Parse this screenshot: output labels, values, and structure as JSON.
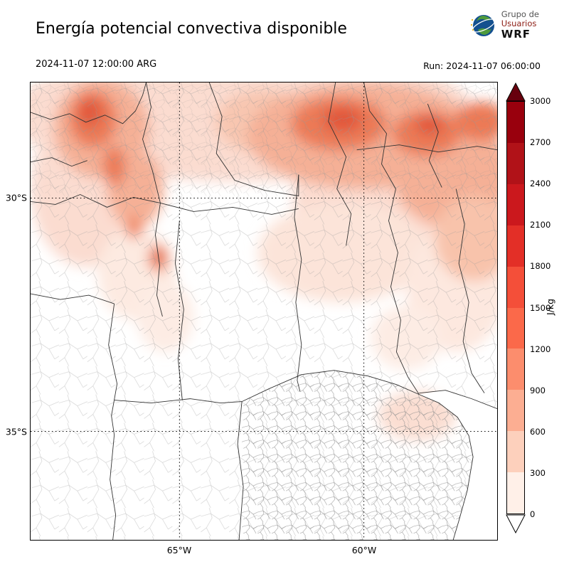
{
  "header": {
    "title": "Energía potencial convectiva disponible",
    "valid_time": "2024-11-07 12:00:00 ARG",
    "run_label": "Run: 2024-11-07 06:00:00",
    "logo": {
      "line1": "Grupo de",
      "line2": "Usuarios",
      "line3": "WRF"
    }
  },
  "map": {
    "lat_ticks": [
      "30°S",
      "35°S"
    ],
    "lon_ticks": [
      "65°W",
      "60°W"
    ]
  },
  "colorbar": {
    "unit": "J/kg",
    "ticks": [
      "3000",
      "2700",
      "2400",
      "2100",
      "1800",
      "1500",
      "1200",
      "900",
      "600",
      "300",
      "0"
    ],
    "segment_colors_top_to_bottom": [
      "#99000d",
      "#b11218",
      "#cb181d",
      "#e32f27",
      "#f44f39",
      "#fb694a",
      "#fc8d6d",
      "#fcae92",
      "#fdd0bc",
      "#fff0e8"
    ],
    "over_color": "#67000d",
    "under_color": "#ffffff"
  },
  "chart_data": {
    "type": "heatmap",
    "title": "Energía potencial convectiva disponible",
    "unit": "J/kg",
    "scale_ticks": [
      0,
      300,
      600,
      900,
      1200,
      1500,
      1800,
      2100,
      2400,
      2700,
      3000
    ],
    "lat_gridlines": [
      "30°S",
      "35°S"
    ],
    "lon_gridlines": [
      "65°W",
      "60°W"
    ],
    "legend_position": "right-colorbar-vertical",
    "features": [
      {
        "region": "top-right / north-northeast band",
        "cape_jkg": "600–1500, widespread"
      },
      {
        "region": "top-left / northwest mountains",
        "cape_jkg": "600–1500, localized maxima"
      },
      {
        "region": "small isolated spot west-center",
        "cape_jkg": "900–1200"
      },
      {
        "region": "center of domain",
        "cape_jkg": "0–300"
      },
      {
        "region": "southern half",
        "cape_jkg": "≈0 with isolated 300–600 patches in the southeast"
      }
    ]
  }
}
